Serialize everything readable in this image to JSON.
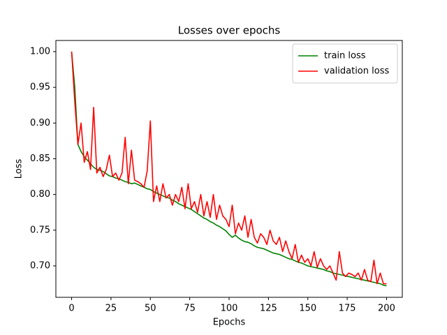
{
  "chart_data": {
    "type": "line",
    "title": "Losses over epochs",
    "x_label": "Epochs",
    "y_label": "Loss",
    "x": [
      0,
      2,
      4,
      6,
      8,
      10,
      12,
      14,
      16,
      18,
      20,
      22,
      24,
      26,
      28,
      30,
      32,
      34,
      36,
      38,
      40,
      42,
      44,
      46,
      48,
      50,
      52,
      54,
      56,
      58,
      60,
      62,
      64,
      66,
      68,
      70,
      72,
      74,
      76,
      78,
      80,
      82,
      84,
      86,
      88,
      90,
      92,
      94,
      96,
      98,
      100,
      102,
      104,
      106,
      108,
      110,
      112,
      114,
      116,
      118,
      120,
      122,
      124,
      126,
      128,
      130,
      132,
      134,
      136,
      138,
      140,
      142,
      144,
      146,
      148,
      150,
      152,
      154,
      156,
      158,
      160,
      162,
      164,
      166,
      168,
      170,
      172,
      174,
      176,
      178,
      180,
      182,
      184,
      186,
      188,
      190,
      192,
      194,
      196,
      198,
      200
    ],
    "series": [
      {
        "name": "train loss",
        "color": "#008000",
        "values": [
          1.0,
          0.95,
          0.87,
          0.86,
          0.853,
          0.848,
          0.843,
          0.838,
          0.835,
          0.834,
          0.832,
          0.829,
          0.826,
          0.825,
          0.823,
          0.822,
          0.82,
          0.818,
          0.817,
          0.815,
          0.816,
          0.814,
          0.812,
          0.81,
          0.808,
          0.807,
          0.804,
          0.802,
          0.8,
          0.798,
          0.796,
          0.795,
          0.792,
          0.79,
          0.787,
          0.785,
          0.783,
          0.781,
          0.779,
          0.776,
          0.773,
          0.77,
          0.767,
          0.765,
          0.762,
          0.76,
          0.757,
          0.755,
          0.752,
          0.749,
          0.744,
          0.74,
          0.743,
          0.739,
          0.736,
          0.734,
          0.733,
          0.731,
          0.728,
          0.726,
          0.725,
          0.724,
          0.722,
          0.72,
          0.718,
          0.717,
          0.716,
          0.714,
          0.712,
          0.71,
          0.709,
          0.707,
          0.705,
          0.704,
          0.702,
          0.7,
          0.699,
          0.698,
          0.697,
          0.696,
          0.695,
          0.693,
          0.692,
          0.69,
          0.689,
          0.688,
          0.687,
          0.686,
          0.685,
          0.684,
          0.683,
          0.682,
          0.681,
          0.68,
          0.679,
          0.678,
          0.677,
          0.676,
          0.675,
          0.673,
          0.672
        ]
      },
      {
        "name": "validation loss",
        "color": "#ff0000",
        "values": [
          1.0,
          0.93,
          0.87,
          0.9,
          0.845,
          0.86,
          0.835,
          0.922,
          0.83,
          0.838,
          0.825,
          0.835,
          0.855,
          0.825,
          0.83,
          0.82,
          0.83,
          0.88,
          0.815,
          0.862,
          0.82,
          0.818,
          0.815,
          0.81,
          0.833,
          0.903,
          0.79,
          0.812,
          0.79,
          0.815,
          0.795,
          0.8,
          0.785,
          0.8,
          0.79,
          0.81,
          0.78,
          0.815,
          0.78,
          0.79,
          0.775,
          0.8,
          0.77,
          0.79,
          0.768,
          0.8,
          0.765,
          0.785,
          0.77,
          0.765,
          0.755,
          0.785,
          0.745,
          0.76,
          0.75,
          0.77,
          0.74,
          0.765,
          0.74,
          0.732,
          0.745,
          0.74,
          0.73,
          0.75,
          0.735,
          0.73,
          0.74,
          0.72,
          0.735,
          0.72,
          0.71,
          0.73,
          0.705,
          0.715,
          0.705,
          0.71,
          0.7,
          0.72,
          0.698,
          0.71,
          0.7,
          0.695,
          0.7,
          0.69,
          0.68,
          0.72,
          0.69,
          0.685,
          0.69,
          0.688,
          0.685,
          0.69,
          0.68,
          0.695,
          0.68,
          0.678,
          0.708,
          0.675,
          0.69,
          0.675,
          0.675
        ]
      }
    ],
    "xlim": [
      -10,
      210
    ],
    "ylim": [
      0.656,
      1.0156
    ],
    "xticks": [
      0,
      25,
      50,
      75,
      100,
      125,
      150,
      175,
      200
    ],
    "yticks": [
      {
        "value": 0.7,
        "label": "0.70"
      },
      {
        "value": 0.75,
        "label": "0.75"
      },
      {
        "value": 0.8,
        "label": "0.80"
      },
      {
        "value": 0.85,
        "label": "0.85"
      },
      {
        "value": 0.9,
        "label": "0.90"
      },
      {
        "value": 0.95,
        "label": "0.95"
      },
      {
        "value": 1.0,
        "label": "1.00"
      }
    ],
    "legend": "upper right",
    "grid": false
  }
}
